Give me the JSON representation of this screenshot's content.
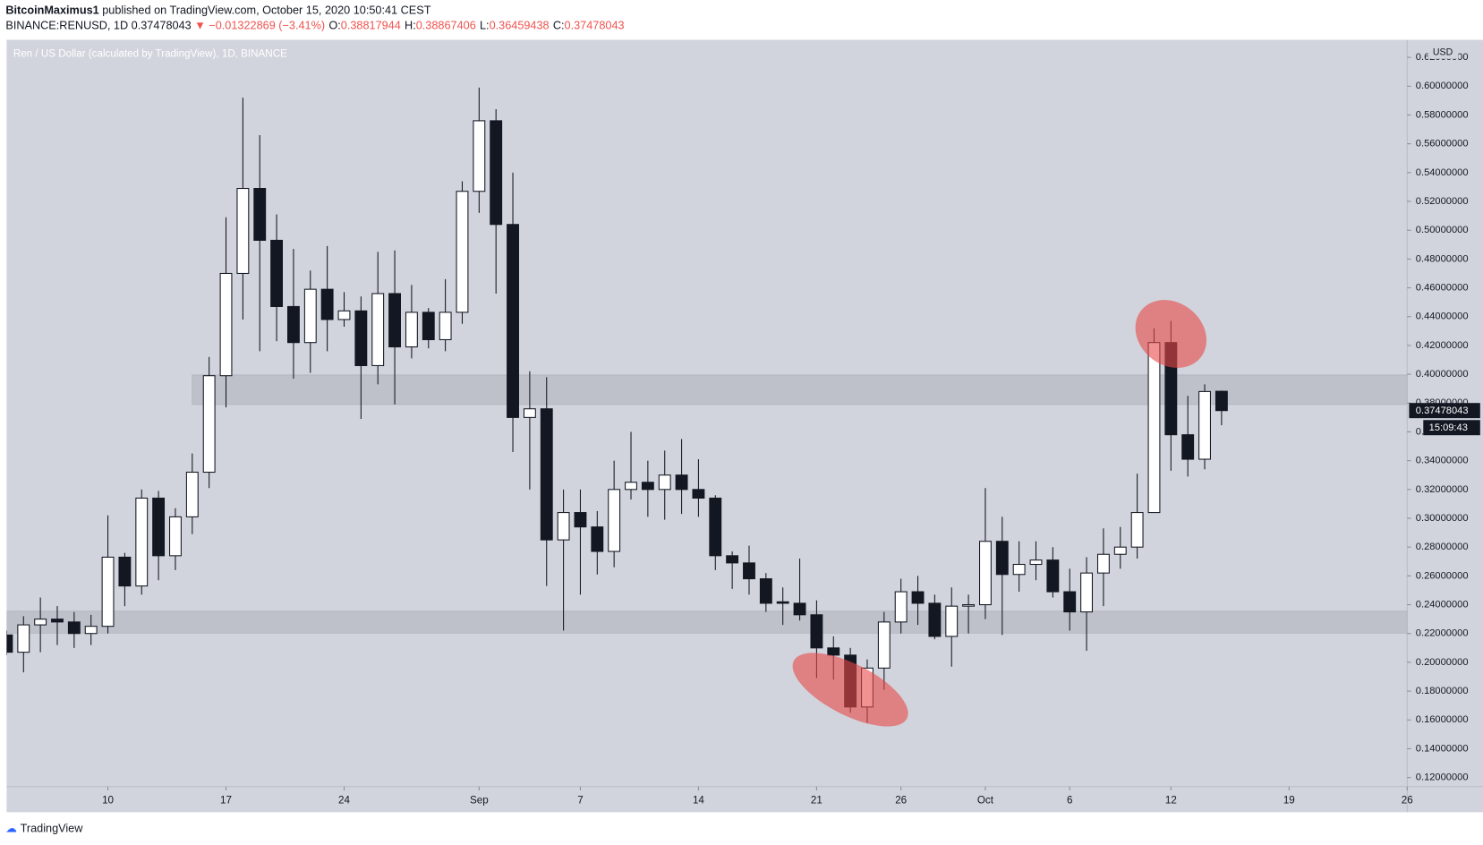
{
  "chart_data": {
    "type": "candlestick",
    "publisher": "BitcoinMaximus1",
    "published": "published on TradingView.com, October 15, 2020 10:50:41 CEST",
    "symbol": "BINANCE:RENUSD, 1D",
    "last": "0.37478043",
    "change": "▼ −0.01322869 (−3.41%)",
    "ohlc_header": [
      {
        "key": "O:",
        "value": "0.38817944"
      },
      {
        "key": "H:",
        "value": "0.38867406"
      },
      {
        "key": "L:",
        "value": "0.36459438"
      },
      {
        "key": "C:",
        "value": "0.37478043"
      }
    ],
    "title": "Ren / US Dollar (calculated by TradingView), 1D, BINANCE",
    "currency": "USD",
    "countdown": "15:09:43",
    "last_price_label": "0.37478043",
    "footer": "TradingView",
    "x": [
      "2020-08-04",
      "2020-08-05",
      "2020-08-06",
      "2020-08-07",
      "2020-08-08",
      "2020-08-09",
      "2020-08-10",
      "2020-08-11",
      "2020-08-12",
      "2020-08-13",
      "2020-08-14",
      "2020-08-15",
      "2020-08-16",
      "2020-08-17",
      "2020-08-18",
      "2020-08-19",
      "2020-08-20",
      "2020-08-21",
      "2020-08-22",
      "2020-08-23",
      "2020-08-24",
      "2020-08-25",
      "2020-08-26",
      "2020-08-27",
      "2020-08-28",
      "2020-08-29",
      "2020-08-30",
      "2020-08-31",
      "2020-09-01",
      "2020-09-02",
      "2020-09-03",
      "2020-09-04",
      "2020-09-05",
      "2020-09-06",
      "2020-09-07",
      "2020-09-08",
      "2020-09-09",
      "2020-09-10",
      "2020-09-11",
      "2020-09-12",
      "2020-09-13",
      "2020-09-14",
      "2020-09-15",
      "2020-09-16",
      "2020-09-17",
      "2020-09-18",
      "2020-09-19",
      "2020-09-20",
      "2020-09-21",
      "2020-09-22",
      "2020-09-23",
      "2020-09-24",
      "2020-09-25",
      "2020-09-26",
      "2020-09-27",
      "2020-09-28",
      "2020-09-29",
      "2020-09-30",
      "2020-10-01",
      "2020-10-02",
      "2020-10-03",
      "2020-10-04",
      "2020-10-05",
      "2020-10-06",
      "2020-10-07",
      "2020-10-08",
      "2020-10-09",
      "2020-10-10",
      "2020-10-11",
      "2020-10-12",
      "2020-10-13",
      "2020-10-14",
      "2020-10-15"
    ],
    "open": [
      0.219,
      0.207,
      0.226,
      0.23,
      0.228,
      0.22,
      0.225,
      0.273,
      0.253,
      0.314,
      0.274,
      0.301,
      0.332,
      0.399,
      0.47,
      0.529,
      0.493,
      0.447,
      0.422,
      0.459,
      0.438,
      0.444,
      0.406,
      0.456,
      0.419,
      0.443,
      0.424,
      0.443,
      0.527,
      0.576,
      0.504,
      0.37,
      0.376,
      0.285,
      0.304,
      0.294,
      0.277,
      0.32,
      0.325,
      0.32,
      0.33,
      0.32,
      0.314,
      0.274,
      0.269,
      0.258,
      0.242,
      0.241,
      0.233,
      0.21,
      0.205,
      0.169,
      0.196,
      0.228,
      0.249,
      0.241,
      0.218,
      0.239,
      0.24,
      0.284,
      0.261,
      0.268,
      0.271,
      0.249,
      0.235,
      0.262,
      0.275,
      0.28,
      0.304,
      0.422,
      0.358,
      0.341,
      0.38817944
    ],
    "high": [
      0.222,
      0.232,
      0.245,
      0.239,
      0.235,
      0.233,
      0.302,
      0.276,
      0.32,
      0.319,
      0.307,
      0.345,
      0.412,
      0.509,
      0.592,
      0.566,
      0.511,
      0.487,
      0.472,
      0.489,
      0.457,
      0.454,
      0.485,
      0.486,
      0.462,
      0.446,
      0.466,
      0.534,
      0.599,
      0.584,
      0.54,
      0.402,
      0.398,
      0.32,
      0.32,
      0.305,
      0.34,
      0.36,
      0.34,
      0.347,
      0.355,
      0.341,
      0.316,
      0.277,
      0.281,
      0.262,
      0.252,
      0.272,
      0.243,
      0.218,
      0.21,
      0.202,
      0.235,
      0.258,
      0.26,
      0.247,
      0.252,
      0.247,
      0.321,
      0.301,
      0.284,
      0.284,
      0.28,
      0.265,
      0.273,
      0.293,
      0.294,
      0.331,
      0.432,
      0.437,
      0.385,
      0.393,
      0.38867406
    ],
    "low": [
      0.205,
      0.193,
      0.207,
      0.212,
      0.21,
      0.212,
      0.22,
      0.239,
      0.247,
      0.257,
      0.264,
      0.289,
      0.321,
      0.377,
      0.438,
      0.416,
      0.423,
      0.397,
      0.401,
      0.416,
      0.433,
      0.369,
      0.393,
      0.379,
      0.411,
      0.418,
      0.416,
      0.435,
      0.512,
      0.456,
      0.346,
      0.32,
      0.253,
      0.222,
      0.247,
      0.261,
      0.266,
      0.313,
      0.301,
      0.299,
      0.303,
      0.301,
      0.264,
      0.251,
      0.247,
      0.235,
      0.226,
      0.229,
      0.189,
      0.188,
      0.165,
      0.158,
      0.181,
      0.22,
      0.226,
      0.216,
      0.197,
      0.22,
      0.23,
      0.219,
      0.249,
      0.257,
      0.245,
      0.222,
      0.208,
      0.239,
      0.265,
      0.272,
      0.304,
      0.333,
      0.329,
      0.334,
      0.36459438
    ],
    "close": [
      0.207,
      0.226,
      0.23,
      0.228,
      0.22,
      0.225,
      0.273,
      0.253,
      0.314,
      0.274,
      0.301,
      0.332,
      0.399,
      0.47,
      0.529,
      0.493,
      0.447,
      0.422,
      0.459,
      0.438,
      0.444,
      0.406,
      0.456,
      0.419,
      0.443,
      0.424,
      0.443,
      0.527,
      0.576,
      0.504,
      0.37,
      0.376,
      0.285,
      0.304,
      0.294,
      0.277,
      0.32,
      0.325,
      0.32,
      0.33,
      0.32,
      0.314,
      0.274,
      0.269,
      0.258,
      0.241,
      0.241,
      0.233,
      0.21,
      0.205,
      0.169,
      0.196,
      0.228,
      0.249,
      0.241,
      0.218,
      0.239,
      0.24,
      0.284,
      0.261,
      0.268,
      0.271,
      0.249,
      0.235,
      0.262,
      0.275,
      0.28,
      0.304,
      0.422,
      0.358,
      0.341,
      0.388,
      0.37478043
    ],
    "up_color": "#ffffff",
    "down_color": "#131722",
    "xlim": [
      "2020-08-04",
      "2020-10-26"
    ],
    "ylim": [
      0.1137,
      0.6322
    ],
    "xticks": [
      {
        "value": "2020-08-10",
        "label": "10"
      },
      {
        "value": "2020-08-17",
        "label": "17"
      },
      {
        "value": "2020-08-24",
        "label": "24"
      },
      {
        "value": "2020-09-01",
        "label": "Sep"
      },
      {
        "value": "2020-09-07",
        "label": "7"
      },
      {
        "value": "2020-09-14",
        "label": "14"
      },
      {
        "value": "2020-09-21",
        "label": "21"
      },
      {
        "value": "2020-09-26",
        "label": "26"
      },
      {
        "value": "2020-10-01",
        "label": "Oct"
      },
      {
        "value": "2020-10-06",
        "label": "6"
      },
      {
        "value": "2020-10-12",
        "label": "12"
      },
      {
        "value": "2020-10-19",
        "label": "19"
      },
      {
        "value": "2020-10-26",
        "label": "26"
      }
    ],
    "yticks": [
      {
        "value": 0.12,
        "label": "0.12000000"
      },
      {
        "value": 0.14,
        "label": "0.14000000"
      },
      {
        "value": 0.16,
        "label": "0.16000000"
      },
      {
        "value": 0.18,
        "label": "0.18000000"
      },
      {
        "value": 0.2,
        "label": "0.20000000"
      },
      {
        "value": 0.22,
        "label": "0.22000000"
      },
      {
        "value": 0.24,
        "label": "0.24000000"
      },
      {
        "value": 0.26,
        "label": "0.26000000"
      },
      {
        "value": 0.28,
        "label": "0.28000000"
      },
      {
        "value": 0.3,
        "label": "0.30000000"
      },
      {
        "value": 0.32,
        "label": "0.32000000"
      },
      {
        "value": 0.34,
        "label": "0.34000000"
      },
      {
        "value": 0.36,
        "label": "0.36000000"
      },
      {
        "value": 0.38,
        "label": "0.38000000"
      },
      {
        "value": 0.4,
        "label": "0.40000000"
      },
      {
        "value": 0.42,
        "label": "0.42000000"
      },
      {
        "value": 0.44,
        "label": "0.44000000"
      },
      {
        "value": 0.46,
        "label": "0.46000000"
      },
      {
        "value": 0.48,
        "label": "0.48000000"
      },
      {
        "value": 0.5,
        "label": "0.50000000"
      },
      {
        "value": 0.52,
        "label": "0.52000000"
      },
      {
        "value": 0.54,
        "label": "0.54000000"
      },
      {
        "value": 0.56,
        "label": "0.56000000"
      },
      {
        "value": 0.58,
        "label": "0.58000000"
      },
      {
        "value": 0.6,
        "label": "0.60000000"
      },
      {
        "value": 0.62,
        "label": "0.62000000"
      }
    ],
    "zones": [
      {
        "start": "2020-08-15",
        "from": 0.379,
        "to": 0.3995
      },
      {
        "from": 0.2203,
        "to": 0.2355
      }
    ],
    "highlights": [
      {
        "x": "2020-09-23",
        "y": 0.181
      },
      {
        "x": "2020-10-12",
        "y": 0.428
      }
    ]
  }
}
